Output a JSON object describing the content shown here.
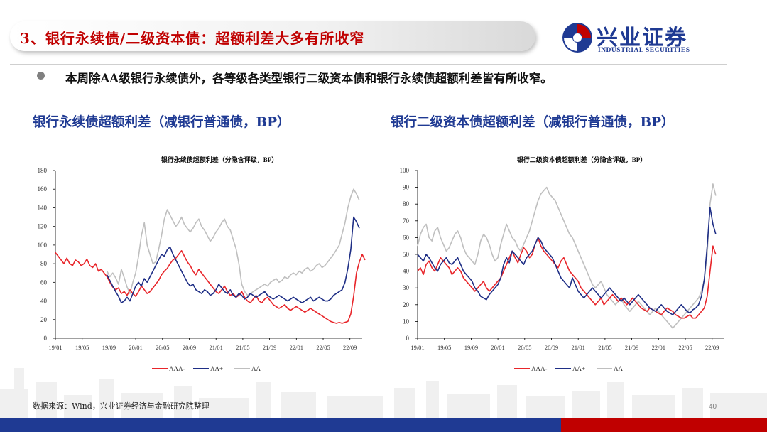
{
  "header": {
    "title": "3、银行永续债/二级资本债：超额利差大多有所收窄",
    "logo_cn": "兴业证券",
    "logo_en": "INDUSTRIAL SECURITIES"
  },
  "summary": "本周除AA级银行永续债外，各等级各类型银行二级资本债和银行永续债超额利差皆有所收窄。",
  "footer": {
    "source": "数据来源：Wind，兴业证券经济与金融研究院整理",
    "page": "40"
  },
  "colors": {
    "brand_blue": "#1f3a93",
    "brand_red": "#c00000",
    "aaa_minus": "#e8262b",
    "aa_plus": "#1f2f86",
    "aa": "#bfbfbf"
  },
  "chart_data": [
    {
      "type": "line",
      "section_title": "银行永续债超额利差（减银行普通债，BP）",
      "title": "银行永续债超额利差（分隐含评级，BP）",
      "xlabel": "",
      "ylabel": "",
      "x_ticks": [
        "19/01",
        "19/05",
        "19/09",
        "20/01",
        "20/05",
        "20/09",
        "21/01",
        "21/05",
        "21/09",
        "22/01",
        "22/05",
        "22/09"
      ],
      "ylim": [
        0,
        180
      ],
      "y_ticks": [
        0,
        20,
        40,
        60,
        80,
        100,
        120,
        140,
        160,
        180
      ],
      "legend_position": "bottom",
      "series": [
        {
          "name": "AAA-",
          "color": "#e8262b",
          "start_index": 0,
          "values": [
            92,
            88,
            84,
            80,
            86,
            80,
            78,
            84,
            82,
            78,
            80,
            85,
            78,
            76,
            80,
            72,
            74,
            70,
            66,
            60,
            55,
            52,
            54,
            48,
            50,
            46,
            52,
            48,
            45,
            50,
            56,
            52,
            48,
            50,
            54,
            58,
            62,
            68,
            72,
            75,
            80,
            84,
            86,
            90,
            94,
            88,
            82,
            78,
            72,
            68,
            74,
            70,
            66,
            62,
            58,
            54,
            50,
            48,
            52,
            56,
            50,
            46,
            48,
            44,
            46,
            50,
            44,
            40,
            38,
            42,
            46,
            40,
            38,
            42,
            44,
            40,
            36,
            34,
            32,
            34,
            36,
            32,
            30,
            32,
            34,
            32,
            30,
            28,
            30,
            32,
            30,
            28,
            26,
            24,
            22,
            20,
            18,
            17,
            16,
            17,
            16,
            17,
            18,
            26,
            45,
            70,
            82,
            90,
            84
          ]
        },
        {
          "name": "AA+",
          "color": "#1f2f86",
          "start_index": 18,
          "values": [
            68,
            62,
            56,
            50,
            45,
            38,
            40,
            44,
            40,
            48,
            56,
            60,
            56,
            64,
            60,
            66,
            72,
            78,
            84,
            90,
            88,
            95,
            98,
            90,
            84,
            78,
            72,
            66,
            60,
            56,
            58,
            52,
            50,
            48,
            52,
            50,
            46,
            48,
            52,
            58,
            54,
            50,
            48,
            52,
            46,
            44,
            48,
            46,
            42,
            44,
            48,
            46,
            44,
            46,
            48,
            50,
            46,
            44,
            42,
            44,
            46,
            44,
            42,
            40,
            42,
            44,
            42,
            40,
            38,
            40,
            42,
            44,
            40,
            42,
            44,
            42,
            40,
            40,
            42,
            46,
            48,
            50,
            52,
            60,
            75,
            95,
            130,
            125,
            118
          ]
        },
        {
          "name": "AA",
          "color": "#bfbfbf",
          "start_index": 18,
          "values": [
            72,
            66,
            70,
            65,
            58,
            74,
            65,
            55,
            48,
            60,
            70,
            88,
            110,
            124,
            100,
            90,
            80,
            82,
            95,
            110,
            128,
            138,
            132,
            126,
            120,
            124,
            130,
            122,
            118,
            114,
            118,
            124,
            128,
            120,
            116,
            110,
            104,
            108,
            114,
            118,
            124,
            128,
            120,
            116,
            106,
            96,
            80,
            58,
            50,
            46,
            48,
            50,
            52,
            54,
            56,
            58,
            56,
            60,
            62,
            64,
            60,
            62,
            66,
            64,
            68,
            70,
            68,
            72,
            70,
            74,
            76,
            72,
            74,
            78,
            80,
            76,
            78,
            82,
            86,
            90,
            95,
            100,
            112,
            124,
            140,
            152,
            160,
            155,
            148
          ]
        }
      ]
    },
    {
      "type": "line",
      "section_title": "银行二级资本债超额利差（减银行普通债，BP）",
      "title": "银行二级资本债超额利差（分隐含评级，BP）",
      "xlabel": "",
      "ylabel": "",
      "x_ticks": [
        "19/01",
        "19/05",
        "19/09",
        "20/01",
        "20/05",
        "20/09",
        "21/01",
        "21/05",
        "21/09",
        "22/01",
        "22/05",
        "22/09"
      ],
      "ylim": [
        0,
        100
      ],
      "y_ticks": [
        0,
        10,
        20,
        30,
        40,
        50,
        60,
        70,
        80,
        90,
        100
      ],
      "legend_position": "bottom",
      "series": [
        {
          "name": "AAA-",
          "color": "#e8262b",
          "start_index": 0,
          "values": [
            40,
            42,
            38,
            44,
            46,
            42,
            40,
            44,
            48,
            46,
            44,
            42,
            38,
            40,
            42,
            40,
            36,
            34,
            32,
            30,
            28,
            30,
            32,
            34,
            30,
            28,
            30,
            32,
            34,
            36,
            40,
            44,
            48,
            52,
            48,
            45,
            50,
            54,
            52,
            48,
            50,
            56,
            60,
            55,
            52,
            50,
            48,
            46,
            44,
            42,
            46,
            48,
            44,
            40,
            38,
            36,
            34,
            30,
            28,
            26,
            24,
            22,
            20,
            22,
            24,
            20,
            22,
            24,
            26,
            24,
            22,
            24,
            22,
            20,
            22,
            24,
            22,
            20,
            18,
            17,
            16,
            18,
            17,
            16,
            15,
            14,
            16,
            18,
            17,
            16,
            14,
            13,
            12,
            12,
            13,
            14,
            12,
            12,
            14,
            16,
            18,
            25,
            40,
            55,
            50
          ]
        },
        {
          "name": "AA+",
          "color": "#1f2f86",
          "start_index": 0,
          "values": [
            50,
            48,
            46,
            50,
            48,
            45,
            42,
            40,
            44,
            46,
            48,
            45,
            44,
            46,
            48,
            44,
            40,
            38,
            36,
            34,
            30,
            28,
            25,
            24,
            23,
            26,
            28,
            30,
            32,
            36,
            44,
            48,
            45,
            52,
            50,
            48,
            46,
            44,
            48,
            50,
            52,
            56,
            60,
            58,
            54,
            52,
            50,
            48,
            44,
            40,
            36,
            34,
            32,
            30,
            36,
            32,
            28,
            26,
            24,
            26,
            28,
            30,
            28,
            26,
            24,
            26,
            28,
            30,
            28,
            26,
            24,
            22,
            24,
            22,
            20,
            22,
            24,
            26,
            24,
            22,
            20,
            18,
            17,
            16,
            18,
            20,
            18,
            16,
            15,
            14,
            16,
            18,
            20,
            18,
            16,
            15,
            17,
            18,
            20,
            25,
            35,
            55,
            78,
            68,
            62
          ]
        },
        {
          "name": "AA",
          "color": "#bfbfbf",
          "start_index": 0,
          "values": [
            55,
            62,
            66,
            68,
            60,
            58,
            64,
            66,
            60,
            56,
            52,
            54,
            58,
            62,
            64,
            60,
            54,
            50,
            48,
            46,
            44,
            50,
            58,
            62,
            60,
            56,
            50,
            46,
            48,
            56,
            62,
            68,
            64,
            60,
            58,
            54,
            52,
            56,
            60,
            64,
            70,
            76,
            82,
            86,
            88,
            90,
            86,
            84,
            82,
            78,
            74,
            70,
            66,
            62,
            60,
            56,
            52,
            48,
            44,
            40,
            36,
            32,
            30,
            32,
            34,
            30,
            26,
            24,
            22,
            20,
            22,
            24,
            20,
            18,
            16,
            18,
            20,
            22,
            20,
            18,
            16,
            14,
            16,
            18,
            16,
            14,
            12,
            10,
            8,
            6,
            8,
            10,
            12,
            14,
            16,
            18,
            20,
            22,
            24,
            28,
            35,
            50,
            80,
            92,
            85
          ]
        }
      ]
    }
  ],
  "legend": [
    "AAA-",
    "AA+",
    "AA"
  ]
}
